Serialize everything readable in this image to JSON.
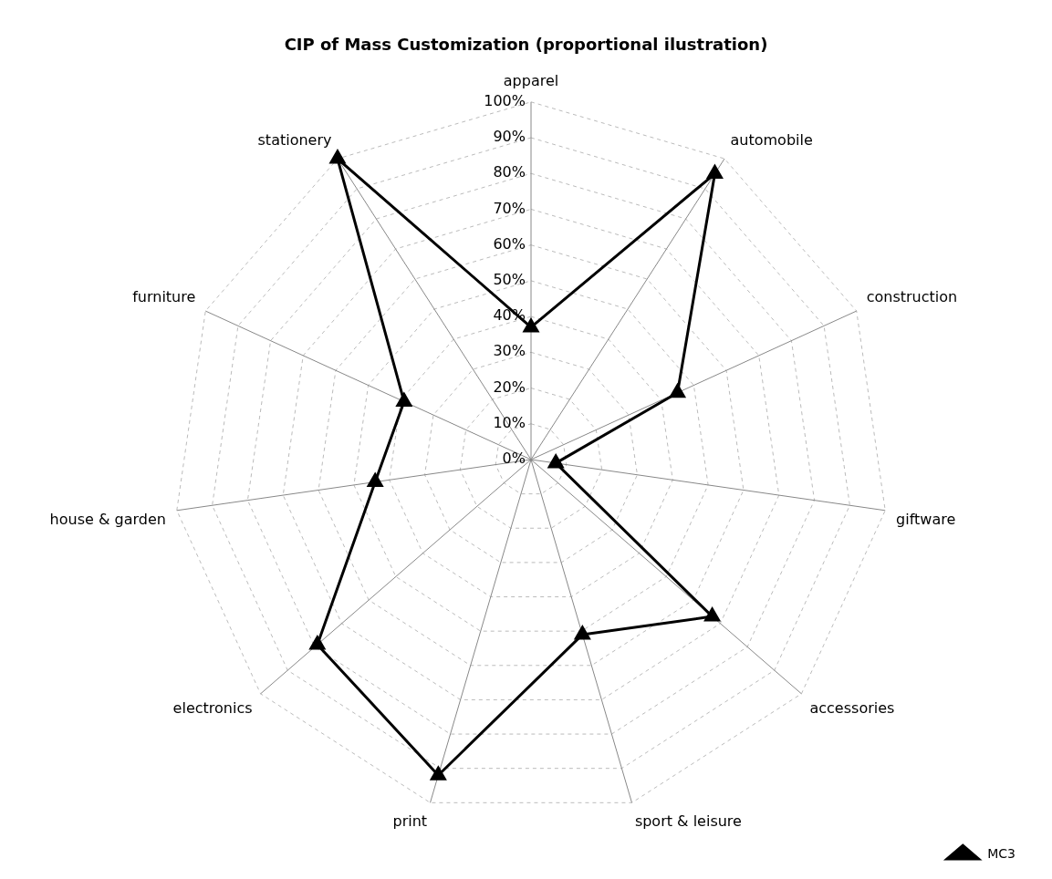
{
  "chart_data": {
    "type": "radar",
    "title": "CIP of Mass Customization (proportional ilustration)",
    "categories": [
      "apparel",
      "automobile",
      "construction",
      "giftware",
      "accessories",
      "sport & leisure",
      "print",
      "electronics",
      "house & garden",
      "furniture",
      "stationery"
    ],
    "series": [
      {
        "name": "MC3",
        "color": "#000000",
        "values": [
          37,
          95,
          45,
          7,
          67,
          51,
          92,
          79,
          44,
          39,
          100
        ]
      }
    ],
    "ylim": [
      0,
      100
    ],
    "yticks": [
      {
        "value": 0,
        "label": "0%"
      },
      {
        "value": 10,
        "label": "10%"
      },
      {
        "value": 20,
        "label": "20%"
      },
      {
        "value": 30,
        "label": "30%"
      },
      {
        "value": 40,
        "label": "40%"
      },
      {
        "value": 50,
        "label": "50%"
      },
      {
        "value": 60,
        "label": "60%"
      },
      {
        "value": 70,
        "label": "70%"
      },
      {
        "value": 80,
        "label": "80%"
      },
      {
        "value": 90,
        "label": "90%"
      },
      {
        "value": 100,
        "label": "100%"
      }
    ],
    "grid": true,
    "legend": "bottom right",
    "marker": "triangle",
    "line_style": "solid"
  }
}
